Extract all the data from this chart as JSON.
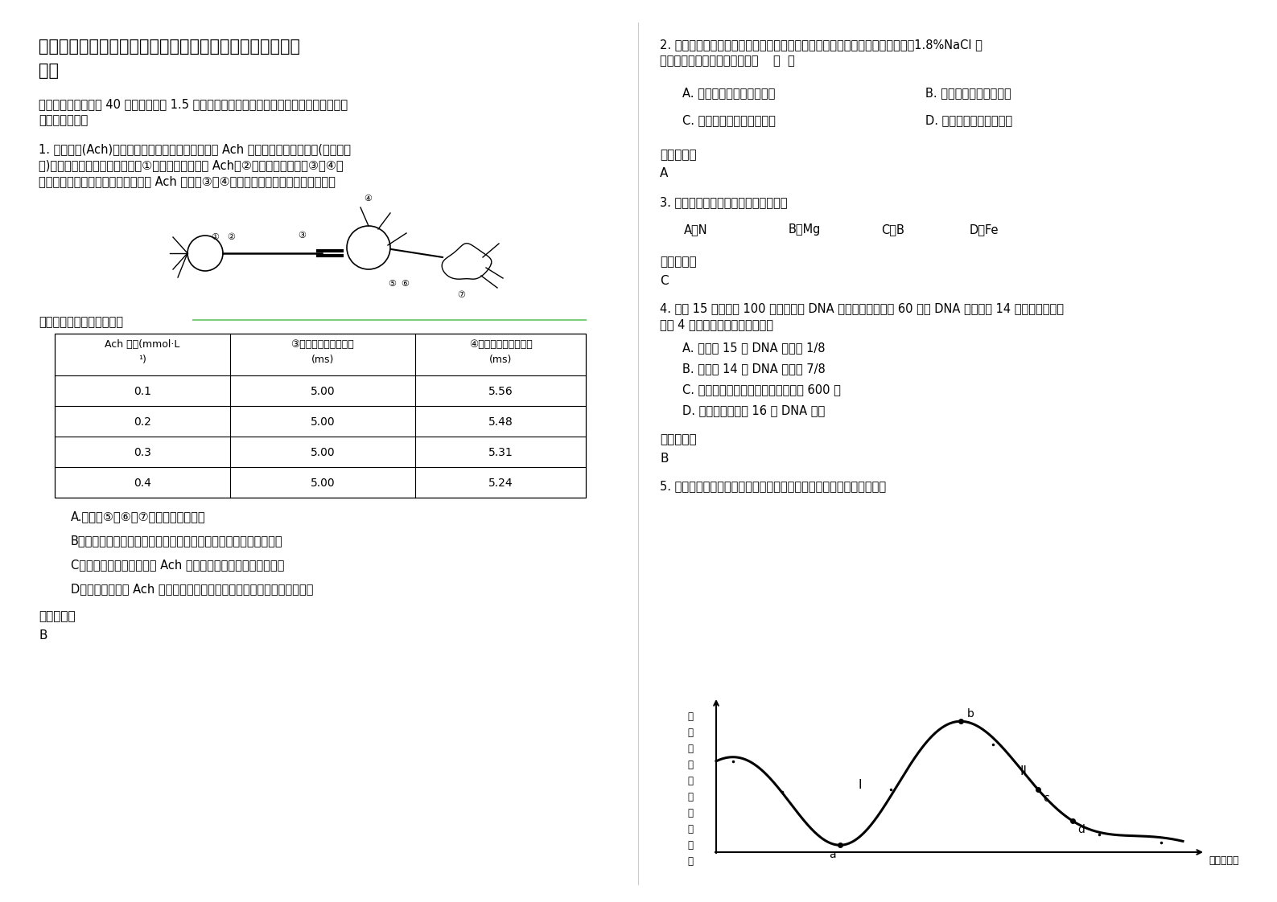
{
  "background_color": "#ffffff",
  "title_line1": "浙江省嘉兴市平湖稚川实验中学高二生物下学期期末试题含",
  "title_line2": "解析",
  "section1": "一、选择题（本题共 40 小题，每小题 1.5 分。在每小题给出的四个选项中，只有一项是符合",
  "section2": "题目要求的。）",
  "q1_line1": "1. 乙酰胆碱(Ach)是一种神经递质。实验人员欲研究 Ach 浓度与反应时间的关系(简图如下",
  "q1_line2": "图)，在除去突触小泡的前提下自①处注入不同浓度的 Ach，②处给予恒定刺激，③、④两",
  "q1_line3": "处分别为感应测量点。测得不同浓度 Ach 条件下③、④两处感受到信号所用时间如下表所",
  "q1_line4": "示。下列各项叙述正确的是",
  "table_h1a": "Ach 浓度(mmol·L",
  "table_h1b": "¹)",
  "table_h2a": "③处感受到信号的时间",
  "table_h2b": "(ms)",
  "table_h3a": "④处感受到信号的时间",
  "table_h3b": "(ms)",
  "table_data": [
    [
      "0.1",
      "5.00",
      "5.56"
    ],
    [
      "0.2",
      "5.00",
      "5.48"
    ],
    [
      "0.3",
      "5.00",
      "5.31"
    ],
    [
      "0.4",
      "5.00",
      "5.24"
    ]
  ],
  "q1_optA": "A.图中的⑤、⑥与⑦共同构成一个突触",
  "q1_optB": "B．实验中除去突触小泡的目的是防止实验结果受到相关因素的干扰",
  "q1_optC": "C．表中数据说明高浓度的 Ach 能促进兴奋在神经纤维上的传导",
  "q1_optD": "D．表中数据说明 Ach 浓度的增加对兴奋在神经元之间的传递无明显影响",
  "q1_ans_label": "参考答案：",
  "q1_ans": "B",
  "q2_line1": "2. 一次性过量饮水会造成人体细胞肿胀，功能受损。可用静脉滴注高浓度盐水（1.8%NaCl 溶",
  "q2_line2": "液）对患者进行治疗。其原理是    （  ）",
  "q2_optA": "A. 升高细胞外液的离子浓度",
  "q2_optB": "B. 促进抗利尿溶液的分泌",
  "q2_optC": "C. 降低细胞内液的离子浓度",
  "q2_optD": "D. 减少细胞外液液体总量",
  "q2_ans_label": "参考答案：",
  "q2_ans": "A",
  "q3_text": "3. 油菜花而不实可能缺少化学元素的是",
  "q3_optA": "A．N",
  "q3_optB": "B．Mg",
  "q3_optC": "C．B",
  "q3_optD": "D．Fe",
  "q3_ans_label": "参考答案：",
  "q3_ans": "C",
  "q4_line1": "4. 用氮 15 标记含有 100 个碱基对的 DNA 分子其中有胞嘧啶 60 个该 DNA 分子在氮 14 的培养基中连续",
  "q4_line2": "复制 4 次下列有关叙述错误的是：",
  "q4_optA": "A. 含有氮 15 的 DNA 分子占 1/8",
  "q4_optB": "B. 含有氮 14 的 DNA 分子占 7/8",
  "q4_optC": "C. 复制过程中需要腺嘌呤脱氧核苷酸 600 个",
  "q4_optD": "D. 复制结果共产生 16 个 DNA 分子",
  "q4_ans_label": "参考答案：",
  "q4_ans": "B",
  "q5_text": "5. 下图表示植物生长单位长度所需时间与生长素浓度的关系，正确的是",
  "q5_ylabel": "生长单位长度所需时间",
  "q5_xlabel": "生长素浓度"
}
